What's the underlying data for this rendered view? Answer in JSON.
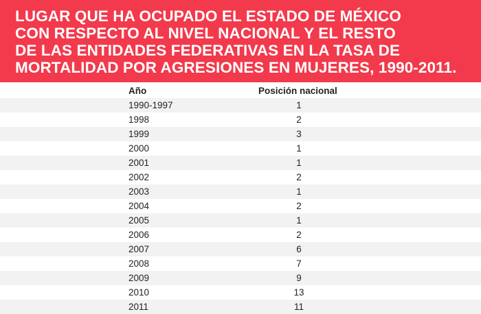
{
  "title_lines": [
    "LUGAR QUE HA OCUPADO EL ESTADO DE MÉXICO",
    "CON RESPECTO AL NIVEL NACIONAL Y EL RESTO",
    "DE LAS ENTIDADES FEDERATIVAS EN LA TASA DE",
    "MORTALIDAD POR AGRESIONES EN MUJERES, 1990-2011."
  ],
  "table": {
    "headers": {
      "year": "Año",
      "position": "Posición nacional"
    },
    "rows": [
      {
        "year": "1990-1997",
        "position": "1"
      },
      {
        "year": "1998",
        "position": "2"
      },
      {
        "year": "1999",
        "position": "3"
      },
      {
        "year": "2000",
        "position": "1"
      },
      {
        "year": "2001",
        "position": "1"
      },
      {
        "year": "2002",
        "position": "2"
      },
      {
        "year": "2003",
        "position": "1"
      },
      {
        "year": "2004",
        "position": "2"
      },
      {
        "year": "2005",
        "position": "1"
      },
      {
        "year": "2006",
        "position": "2"
      },
      {
        "year": "2007",
        "position": "6"
      },
      {
        "year": "2008",
        "position": "7"
      },
      {
        "year": "2009",
        "position": "9"
      },
      {
        "year": "2010",
        "position": "13"
      },
      {
        "year": "2011",
        "position": "11"
      }
    ]
  },
  "colors": {
    "banner": "#f23a4c",
    "title_text": "#ffffff",
    "row_shade": "#f2f2f2",
    "body_text": "#222222"
  }
}
